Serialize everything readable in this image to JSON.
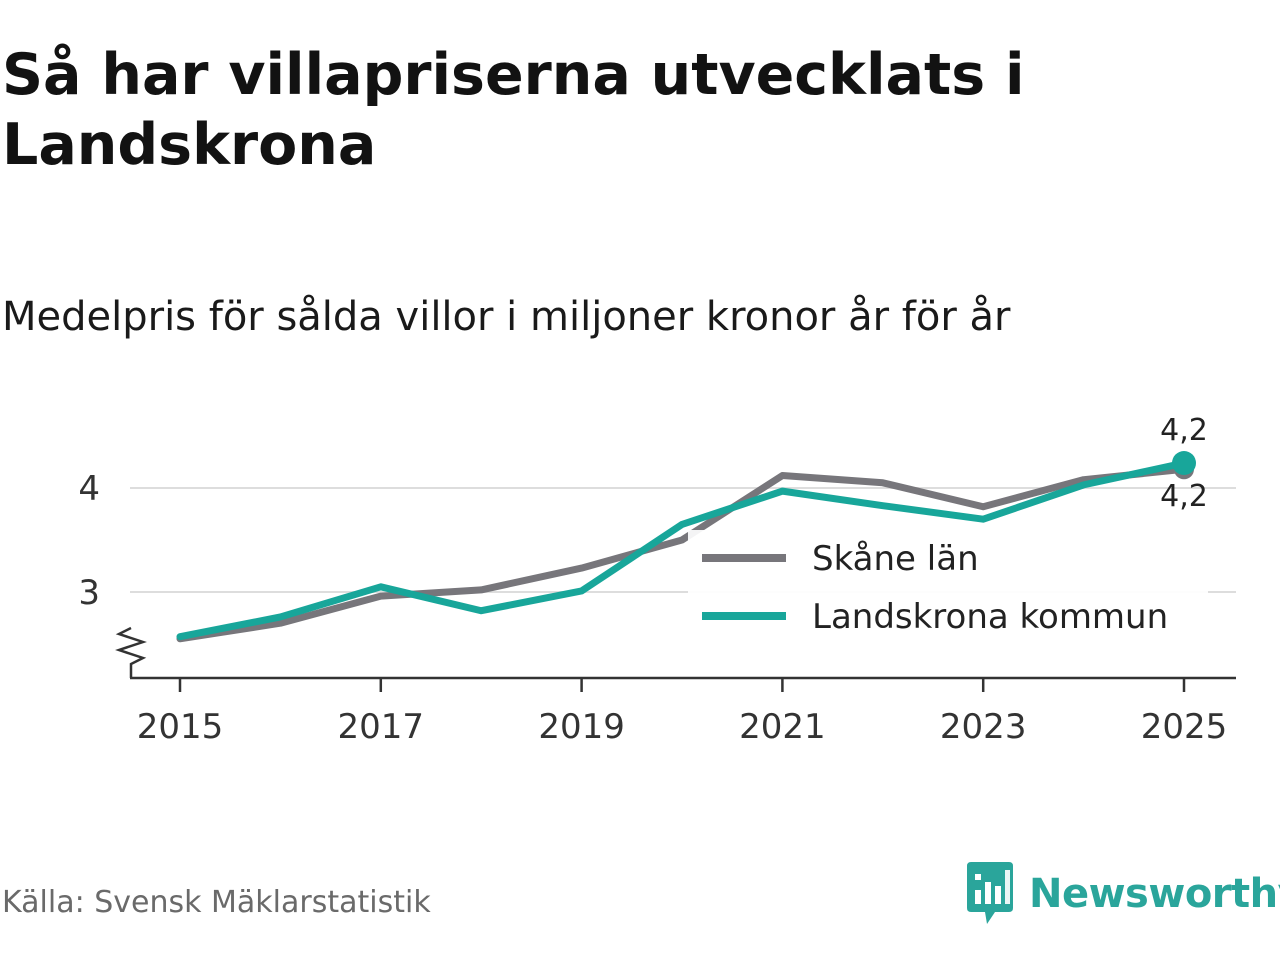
{
  "title": "Så har villapriserna utvecklats i Landskrona",
  "subtitle": "Medelpris för sålda villor i miljoner kronor år för år",
  "source": "Källa: Svensk Mäklarstatistik",
  "brand": {
    "name": "Newsworthy",
    "icon": "newsworthy-logo-icon",
    "color": "#2aa59b"
  },
  "chart_data": {
    "type": "line",
    "x": [
      2015,
      2016,
      2017,
      2018,
      2019,
      2020,
      2021,
      2022,
      2023,
      2024,
      2025
    ],
    "series": [
      {
        "name": "Skåne län",
        "color": "#77767b",
        "values": [
          2.55,
          2.7,
          2.96,
          3.02,
          3.23,
          3.5,
          4.12,
          4.05,
          3.82,
          4.08,
          4.18
        ]
      },
      {
        "name": "Landskrona kommun",
        "color": "#18a69a",
        "values": [
          2.57,
          2.76,
          3.05,
          2.82,
          3.01,
          3.65,
          3.97,
          3.83,
          3.7,
          4.03,
          4.24
        ]
      }
    ],
    "x_ticks": [
      "2015",
      "2017",
      "2019",
      "2021",
      "2023",
      "2025"
    ],
    "y_ticks": [
      "3",
      "4"
    ],
    "ylim": [
      2.2,
      4.5
    ],
    "grid": true,
    "axis_break": true,
    "end_labels": {
      "top": "4,2",
      "bottom": "4,2"
    },
    "legend_position": "bottom-right"
  }
}
